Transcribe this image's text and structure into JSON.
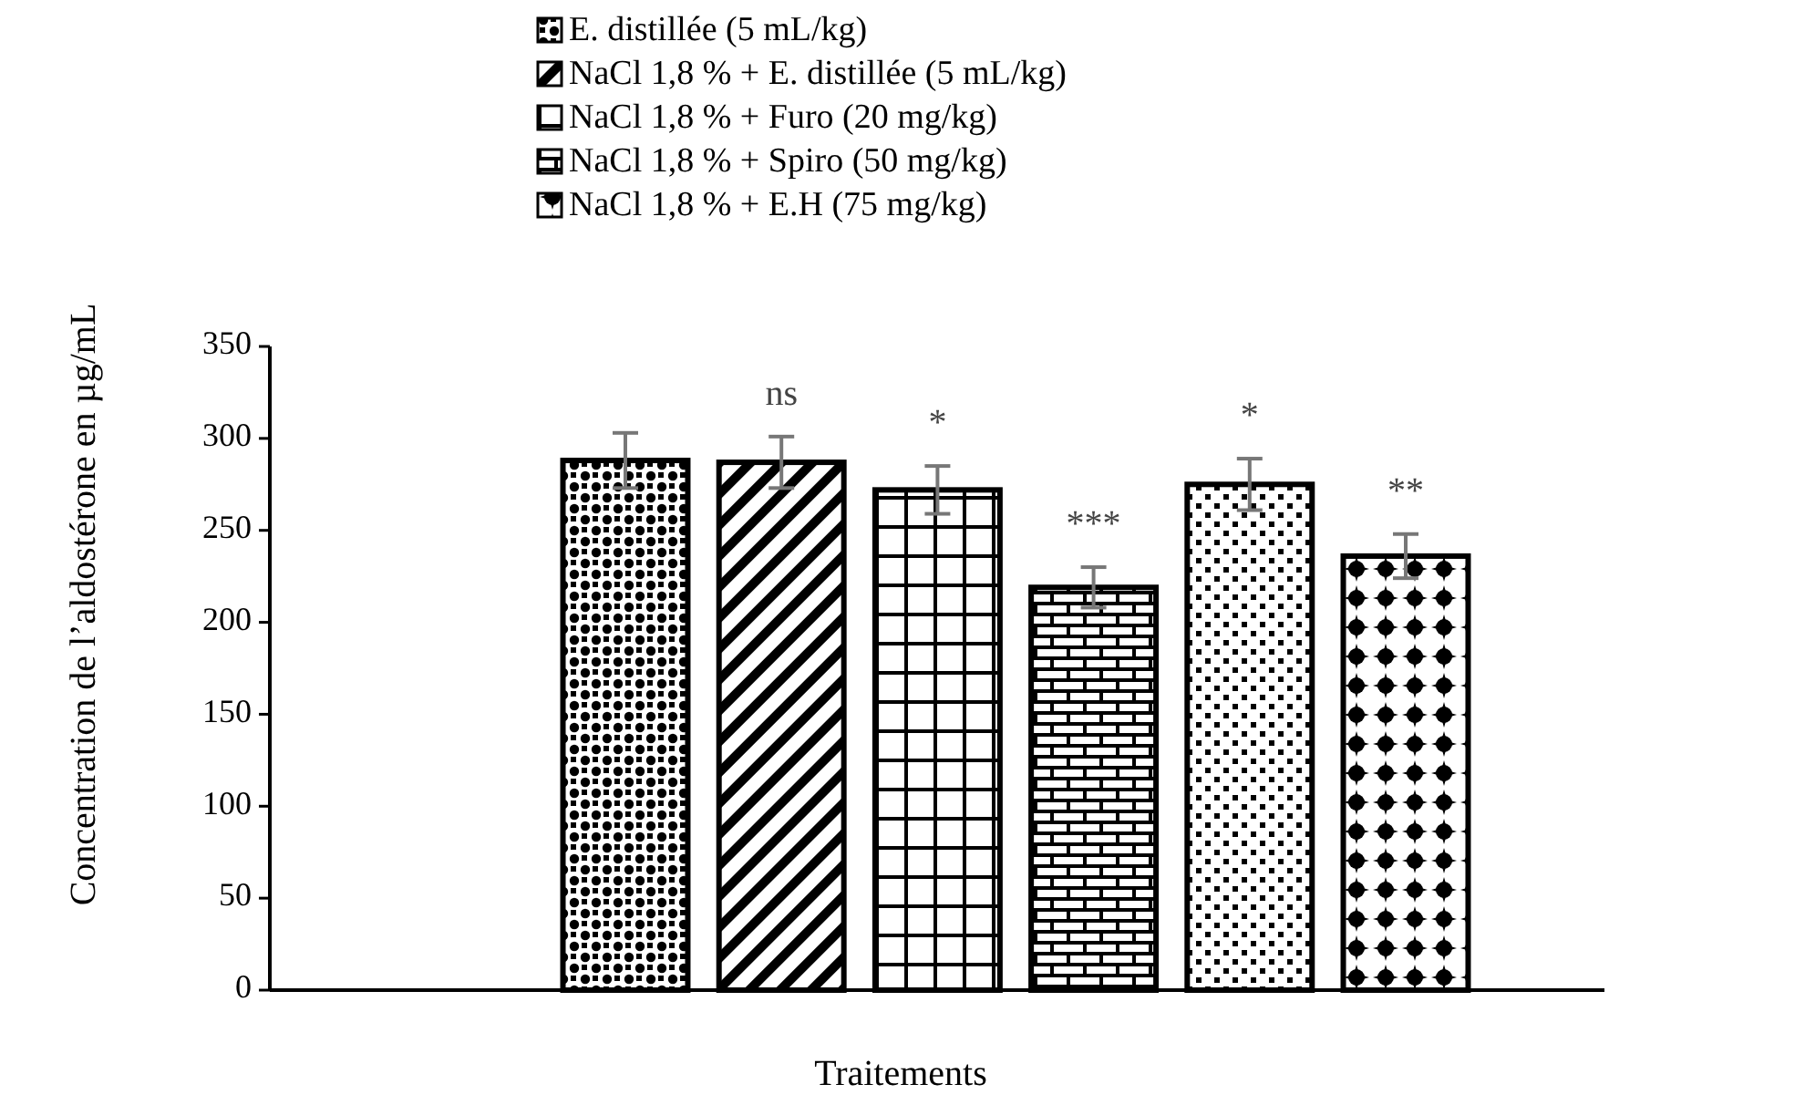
{
  "chart_data": {
    "type": "bar",
    "ylabel": "Concentration de l’aldostérone en µg/mL",
    "xlabel": "Traitements",
    "categories": [
      null
    ],
    "series": [
      {
        "name": "E. distillée (5 mL/kg)",
        "color": "#000000",
        "values": [
          288
        ],
        "errors": [
          15
        ]
      },
      {
        "name": "NaCl 1,8 % + E. distillée (5 mL/kg)",
        "color": "#000000",
        "values": [
          287
        ],
        "errors": [
          14
        ]
      },
      {
        "name": "NaCl 1,8 % + Furo (20 mg/kg)",
        "color": "#000000",
        "values": [
          272
        ],
        "errors": [
          13
        ]
      },
      {
        "name": "NaCl 1,8 % + Spiro (50 mg/kg)",
        "color": "#000000",
        "values": [
          219
        ],
        "errors": [
          11
        ]
      },
      {
        "color": "#000000",
        "values": [
          275
        ],
        "errors": [
          14
        ]
      },
      {
        "name": "NaCl 1,8 % + E.H (75 mg/kg)",
        "color": "#000000",
        "values": [
          236
        ],
        "errors": [
          12
        ]
      }
    ],
    "annotations": [
      "ns",
      "*",
      "***",
      "*",
      "**"
    ],
    "ylim": [
      0,
      350
    ],
    "yticks": [
      0,
      50,
      100,
      150,
      200,
      250,
      300,
      350
    ],
    "grid": false,
    "legend": "top"
  }
}
